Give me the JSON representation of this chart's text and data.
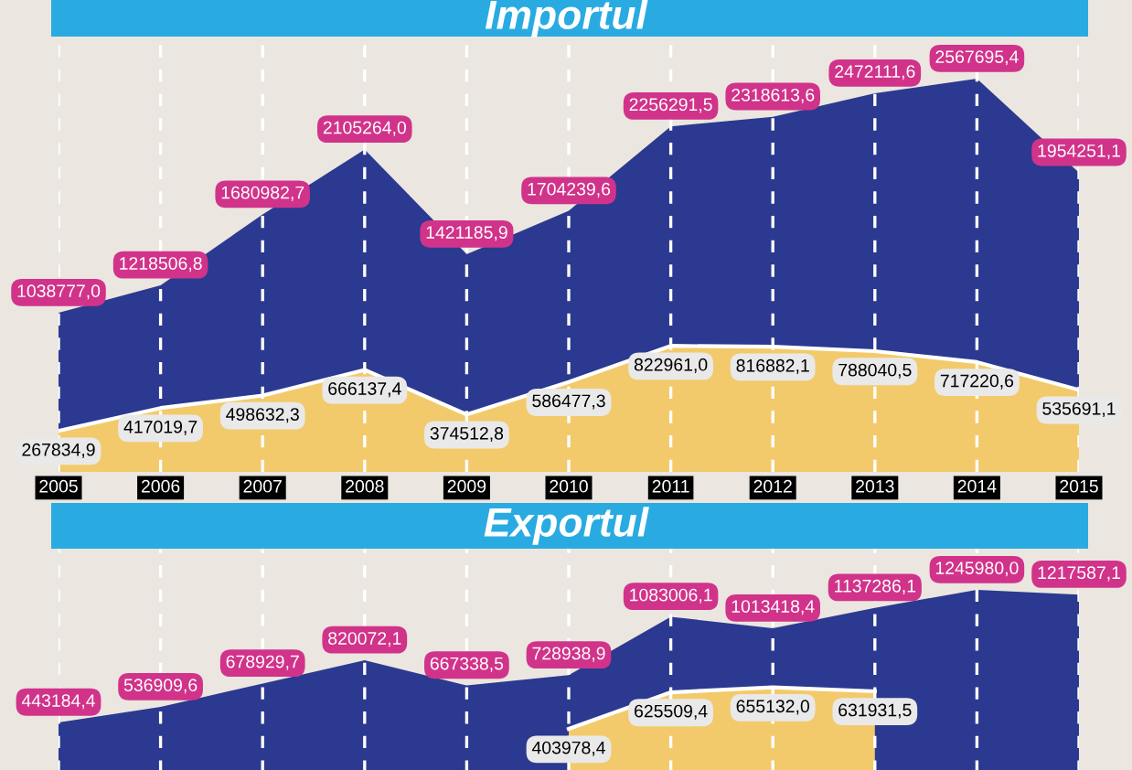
{
  "chart_data": [
    {
      "type": "area",
      "title": "Importul",
      "categories": [
        "2005",
        "2006",
        "2007",
        "2008",
        "2009",
        "2010",
        "2011",
        "2012",
        "2013",
        "2014",
        "2015"
      ],
      "grid": "x",
      "series": [
        {
          "color": "#2b3990",
          "values": [
            1038777.0,
            1218506.8,
            1680982.7,
            2105264.0,
            1421185.9,
            1704239.6,
            2256291.5,
            2318613.6,
            2472111.6,
            2567695.4,
            1954251.1
          ],
          "value_labels": [
            "1038777,0",
            "1218506,8",
            "1680982,7",
            "2105264,0",
            "1421185,9",
            "1704239,6",
            "2256291,5",
            "2318613,6",
            "2472111,6",
            "2567695,4",
            "1954251,1"
          ]
        },
        {
          "color": "#f3ca6b",
          "values": [
            267834.9,
            417019.7,
            498632.3,
            666137.4,
            374512.8,
            586477.3,
            822961.0,
            816882.1,
            788040.5,
            717220.6,
            535691.1
          ],
          "value_labels": [
            "267834,9",
            "417019,7",
            "498632,3",
            "666137,4",
            "374512,8",
            "586477,3",
            "822961,0",
            "816882,1",
            "788040,5",
            "717220,6",
            "535691,1"
          ]
        }
      ]
    },
    {
      "type": "area",
      "title": "Exportul",
      "categories": [
        null,
        null,
        null,
        null,
        null,
        null,
        null,
        null,
        null,
        null,
        null
      ],
      "grid": "x",
      "series": [
        {
          "color": "#2b3990",
          "values": [
            443184.4,
            536909.6,
            678929.7,
            820072.1,
            667338.5,
            728938.9,
            1083006.1,
            1013418.4,
            1137286.1,
            1245980.0,
            1217587.1
          ],
          "value_labels": [
            "443184,4",
            "536909,6",
            "678929,7",
            "820072,1",
            "667338,5",
            "728938,9",
            "1083006,1",
            "1013418,4",
            "1137286,1",
            "1245980,0",
            "1217587,1"
          ]
        },
        {
          "color": "#f3ca6b",
          "values": [
            null,
            null,
            null,
            null,
            null,
            403978.4,
            625509.4,
            655132.0,
            631931.5,
            null,
            null
          ],
          "value_labels": [
            null,
            null,
            null,
            null,
            null,
            "403978,4",
            "625509,4",
            "655132,0",
            "631931,5",
            null,
            null
          ]
        }
      ]
    }
  ]
}
